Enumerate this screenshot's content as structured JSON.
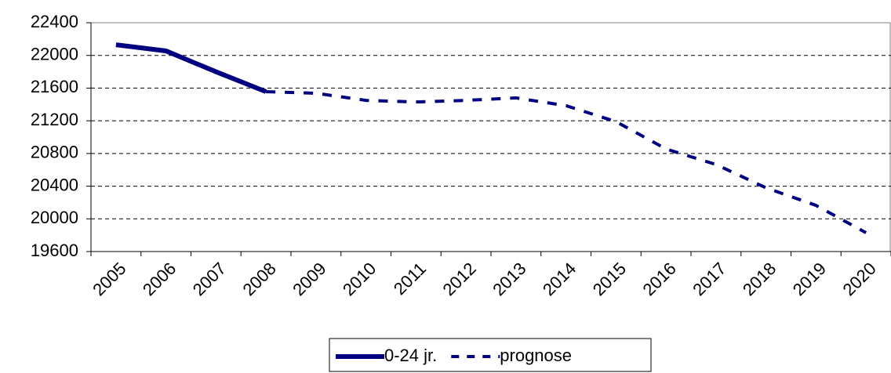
{
  "chart_data": {
    "type": "line",
    "categories": [
      "2005",
      "2006",
      "2007",
      "2008",
      "2009",
      "2010",
      "2011",
      "2012",
      "2013",
      "2014",
      "2015",
      "2016",
      "2017",
      "2018",
      "2019",
      "2020"
    ],
    "series": [
      {
        "name": "0-24 jr.",
        "color": "#000080",
        "style": "solid",
        "values": [
          22130,
          22055,
          21800,
          21556,
          null,
          null,
          null,
          null,
          null,
          null,
          null,
          null,
          null,
          null,
          null,
          null
        ]
      },
      {
        "name": "prognose",
        "color": "#000080",
        "style": "dashed",
        "values": [
          null,
          null,
          null,
          21556,
          21537,
          21450,
          21430,
          21450,
          21480,
          21385,
          21190,
          20855,
          20665,
          20380,
          20165,
          19830
        ]
      }
    ],
    "ylim": [
      19600,
      22400
    ],
    "yticks": [
      19600,
      20000,
      20400,
      20800,
      21200,
      21600,
      22000,
      22400
    ],
    "grid": true,
    "legend": "bottom"
  }
}
